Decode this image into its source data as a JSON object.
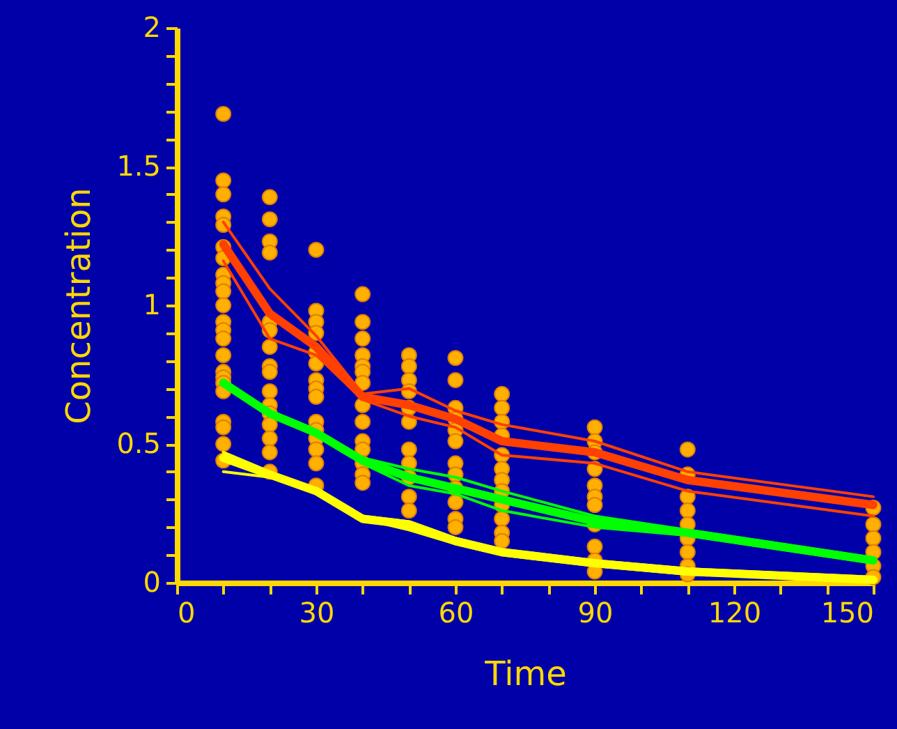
{
  "chart_data": {
    "type": "line",
    "xlabel": "Time",
    "ylabel": "Concentration",
    "x": [
      10,
      20,
      30,
      40,
      50,
      60,
      70,
      90,
      110,
      150
    ],
    "xlim": [
      0,
      150
    ],
    "ylim": [
      0,
      2
    ],
    "xticks": [
      0,
      {
        "value": 10,
        "label": null
      },
      {
        "value": 20,
        "label": null
      },
      30,
      {
        "value": 40,
        "label": null
      },
      {
        "value": 50,
        "label": null
      },
      60,
      {
        "value": 70,
        "label": null
      },
      {
        "value": 80,
        "label": null
      },
      90,
      {
        "value": 100,
        "label": null
      },
      {
        "value": 110,
        "label": null
      },
      120,
      {
        "value": 130,
        "label": null
      },
      {
        "value": 140,
        "label": null
      },
      150
    ],
    "yticks": [
      0,
      {
        "value": 0.1,
        "label": null
      },
      {
        "value": 0.2,
        "label": null
      },
      {
        "value": 0.3,
        "label": null
      },
      {
        "value": 0.4,
        "label": null
      },
      0.5,
      {
        "value": 0.6,
        "label": null
      },
      {
        "value": 0.7,
        "label": null
      },
      {
        "value": 0.8,
        "label": null
      },
      {
        "value": 0.9,
        "label": null
      },
      1,
      {
        "value": 1.1,
        "label": null
      },
      {
        "value": 1.2,
        "label": null
      },
      {
        "value": 1.3,
        "label": null
      },
      {
        "value": 1.4,
        "label": null
      },
      1.5,
      {
        "value": 1.6,
        "label": null
      },
      {
        "value": 1.7,
        "label": null
      },
      {
        "value": 1.8,
        "label": null
      },
      {
        "value": 1.9,
        "label": null
      },
      2
    ],
    "grid": false,
    "series": [
      {
        "type": "scatter",
        "color": "#ffb000",
        "marker": "circle",
        "x": [
          10,
          10,
          10,
          10,
          10,
          10,
          10,
          10,
          10,
          10,
          10,
          10,
          10,
          10,
          10,
          10,
          10,
          10,
          10,
          10,
          10,
          10,
          10,
          20,
          20,
          20,
          20,
          20,
          20,
          20,
          20,
          20,
          20,
          20,
          20,
          20,
          20,
          20,
          20,
          30,
          30,
          30,
          30,
          30,
          30,
          30,
          30,
          30,
          30,
          30,
          30,
          30,
          30,
          30,
          40,
          40,
          40,
          40,
          40,
          40,
          40,
          40,
          40,
          40,
          40,
          40,
          40,
          40,
          50,
          50,
          50,
          50,
          50,
          50,
          50,
          50,
          50,
          50,
          50,
          60,
          60,
          60,
          60,
          60,
          60,
          60,
          60,
          60,
          60,
          60,
          60,
          70,
          70,
          70,
          70,
          70,
          70,
          70,
          70,
          70,
          70,
          70,
          70,
          90,
          90,
          90,
          90,
          90,
          90,
          90,
          90,
          90,
          90,
          90,
          110,
          110,
          110,
          110,
          110,
          110,
          110,
          110,
          110,
          150,
          150,
          150,
          150,
          150,
          150
        ],
        "values": [
          1.69,
          1.45,
          1.4,
          1.32,
          1.29,
          1.21,
          1.17,
          1.11,
          1.08,
          1.05,
          1.0,
          0.94,
          0.91,
          0.88,
          0.82,
          0.76,
          0.74,
          0.72,
          0.69,
          0.58,
          0.56,
          0.5,
          0.44,
          1.39,
          1.31,
          1.23,
          1.19,
          0.94,
          0.91,
          0.85,
          0.78,
          0.76,
          0.69,
          0.64,
          0.61,
          0.57,
          0.52,
          0.47,
          0.4,
          1.2,
          0.98,
          0.94,
          0.9,
          0.83,
          0.79,
          0.73,
          0.7,
          0.67,
          0.58,
          0.55,
          0.52,
          0.48,
          0.43,
          0.35,
          1.04,
          0.94,
          0.88,
          0.82,
          0.78,
          0.76,
          0.72,
          0.64,
          0.58,
          0.51,
          0.48,
          0.43,
          0.39,
          0.36,
          0.82,
          0.78,
          0.73,
          0.69,
          0.63,
          0.58,
          0.48,
          0.43,
          0.38,
          0.31,
          0.26,
          0.81,
          0.73,
          0.63,
          0.59,
          0.55,
          0.51,
          0.43,
          0.39,
          0.34,
          0.29,
          0.23,
          0.2,
          0.68,
          0.63,
          0.58,
          0.53,
          0.46,
          0.41,
          0.37,
          0.33,
          0.28,
          0.23,
          0.18,
          0.15,
          0.56,
          0.51,
          0.47,
          0.41,
          0.35,
          0.31,
          0.28,
          0.21,
          0.13,
          0.08,
          0.04,
          0.48,
          0.39,
          0.31,
          0.26,
          0.21,
          0.16,
          0.11,
          0.06,
          0.03,
          0.27,
          0.21,
          0.16,
          0.11,
          0.06,
          0.02
        ]
      },
      {
        "color": "#ff4000",
        "values": [
          1.3,
          1.06,
          0.89,
          0.68,
          0.7,
          0.62,
          0.57,
          0.51,
          0.4,
          0.31
        ]
      },
      {
        "color": "#ff4000",
        "values": [
          1.16,
          0.88,
          0.82,
          0.66,
          0.6,
          0.56,
          0.46,
          0.43,
          0.33,
          0.24
        ]
      },
      {
        "color": "#00ff00",
        "values": [
          0.73,
          0.62,
          0.55,
          0.45,
          0.41,
          0.38,
          0.33,
          0.24,
          0.19,
          0.09
        ]
      },
      {
        "color": "#00ff00",
        "values": [
          0.71,
          0.6,
          0.53,
          0.43,
          0.35,
          0.32,
          0.26,
          0.2,
          0.17,
          0.07
        ]
      },
      {
        "color": "#ffff00",
        "values": [
          0.47,
          0.4,
          0.33,
          0.23,
          0.19,
          0.14,
          0.1,
          0.06,
          0.03,
          0.01
        ]
      },
      {
        "color": "#ffff00",
        "values": [
          0.4,
          0.38,
          0.33,
          0.24,
          0.22,
          0.16,
          0.12,
          0.08,
          0.05,
          0.02
        ]
      },
      {
        "color": "#ff4000",
        "values": [
          1.22,
          0.97,
          0.85,
          0.67,
          0.64,
          0.59,
          0.51,
          0.47,
          0.37,
          0.28
        ]
      },
      {
        "color": "#00ff00",
        "values": [
          0.72,
          0.61,
          0.54,
          0.44,
          0.38,
          0.34,
          0.3,
          0.22,
          0.18,
          0.08
        ]
      },
      {
        "color": "#ffff00",
        "values": [
          0.45,
          0.39,
          0.33,
          0.23,
          0.21,
          0.15,
          0.11,
          0.07,
          0.04,
          0.01
        ]
      }
    ]
  }
}
